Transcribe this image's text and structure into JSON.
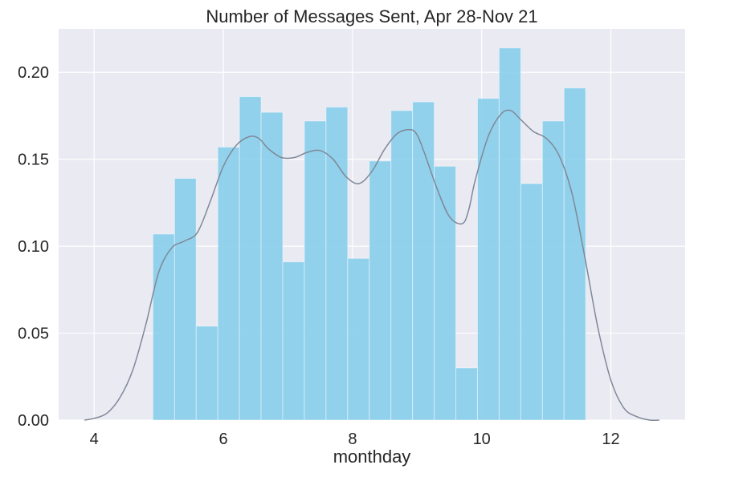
{
  "chart_data": {
    "type": "bar",
    "title": "Number of Messages Sent, Apr 28-Nov 21",
    "xlabel": "monthday",
    "ylabel": "",
    "xlim": [
      3.45,
      13.15
    ],
    "ylim": [
      0,
      0.225
    ],
    "x_ticks": [
      4,
      6,
      8,
      10,
      12
    ],
    "y_ticks": [
      0.0,
      0.05,
      0.1,
      0.15,
      0.2
    ],
    "x_tick_labels": [
      "4",
      "6",
      "8",
      "10",
      "12"
    ],
    "y_tick_labels": [
      "0.00",
      "0.05",
      "0.10",
      "0.15",
      "0.20"
    ],
    "grid": true,
    "bins": [
      {
        "x0": 4.91,
        "x1": 5.245,
        "value": 0.107
      },
      {
        "x0": 5.245,
        "x1": 5.58,
        "value": 0.139
      },
      {
        "x0": 5.58,
        "x1": 5.915,
        "value": 0.054
      },
      {
        "x0": 5.915,
        "x1": 6.25,
        "value": 0.157
      },
      {
        "x0": 6.25,
        "x1": 6.585,
        "value": 0.186
      },
      {
        "x0": 6.585,
        "x1": 6.92,
        "value": 0.177
      },
      {
        "x0": 6.92,
        "x1": 7.255,
        "value": 0.091
      },
      {
        "x0": 7.255,
        "x1": 7.59,
        "value": 0.172
      },
      {
        "x0": 7.59,
        "x1": 7.925,
        "value": 0.18
      },
      {
        "x0": 7.925,
        "x1": 8.26,
        "value": 0.093
      },
      {
        "x0": 8.26,
        "x1": 8.595,
        "value": 0.149
      },
      {
        "x0": 8.595,
        "x1": 8.93,
        "value": 0.178
      },
      {
        "x0": 8.93,
        "x1": 9.265,
        "value": 0.183
      },
      {
        "x0": 9.265,
        "x1": 9.6,
        "value": 0.146
      },
      {
        "x0": 9.6,
        "x1": 9.935,
        "value": 0.03
      },
      {
        "x0": 9.935,
        "x1": 10.27,
        "value": 0.185
      },
      {
        "x0": 10.27,
        "x1": 10.605,
        "value": 0.214
      },
      {
        "x0": 10.605,
        "x1": 10.94,
        "value": 0.136
      },
      {
        "x0": 10.94,
        "x1": 11.275,
        "value": 0.172
      },
      {
        "x0": 11.275,
        "x1": 11.61,
        "value": 0.191
      }
    ],
    "kde": {
      "x": [
        3.85,
        4.0,
        4.2,
        4.4,
        4.6,
        4.8,
        5.0,
        5.2,
        5.4,
        5.6,
        5.8,
        6.0,
        6.2,
        6.4,
        6.55,
        6.7,
        6.9,
        7.1,
        7.3,
        7.5,
        7.7,
        7.9,
        8.1,
        8.3,
        8.5,
        8.7,
        8.9,
        9.0,
        9.1,
        9.3,
        9.5,
        9.7,
        9.8,
        9.9,
        10.1,
        10.3,
        10.45,
        10.6,
        10.8,
        11.0,
        11.2,
        11.4,
        11.6,
        11.8,
        12.0,
        12.2,
        12.4,
        12.6,
        12.75
      ],
      "y": [
        0.0,
        0.001,
        0.004,
        0.013,
        0.029,
        0.055,
        0.085,
        0.099,
        0.103,
        0.108,
        0.126,
        0.146,
        0.158,
        0.163,
        0.162,
        0.156,
        0.151,
        0.151,
        0.154,
        0.155,
        0.15,
        0.14,
        0.136,
        0.143,
        0.156,
        0.165,
        0.167,
        0.164,
        0.155,
        0.134,
        0.117,
        0.113,
        0.121,
        0.138,
        0.163,
        0.176,
        0.178,
        0.173,
        0.166,
        0.162,
        0.152,
        0.13,
        0.093,
        0.053,
        0.023,
        0.007,
        0.002,
        0.0,
        0.0
      ]
    },
    "colors": {
      "bar_fill": "#87ceeb",
      "kde_line": "#808898",
      "plot_background": "#eaeaf2",
      "grid": "#ffffff"
    }
  }
}
